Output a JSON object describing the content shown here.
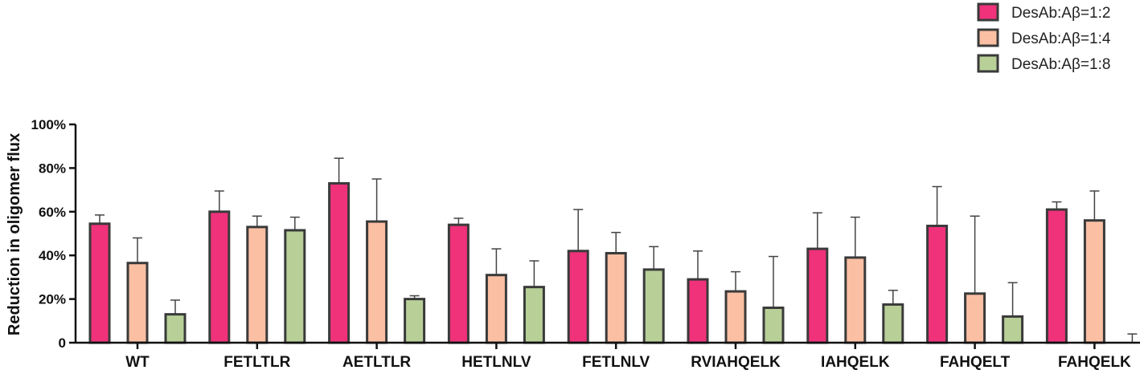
{
  "chart_data": {
    "type": "bar",
    "ylabel": "Reduction in oligomer flux",
    "ylim": [
      0,
      100
    ],
    "yticks": [
      "0",
      "20%",
      "40%",
      "60%",
      "80%",
      "100%"
    ],
    "legend_position": "top-right",
    "categories": [
      "WT",
      "FETLTLR",
      "AETLTLR",
      "HETLNLV",
      "FETLNLV",
      "RVIAHQELK",
      "IAHQELK",
      "FAHQELT",
      "FAHQELK"
    ],
    "series": [
      {
        "name": "DesAb:Aβ=1:2",
        "color": "#f0327a",
        "values": [
          54.5,
          60,
          73,
          54,
          42,
          29,
          43,
          53.5,
          61
        ],
        "errors": [
          4,
          9.5,
          11.5,
          3,
          19,
          13,
          16.5,
          18,
          3.5
        ]
      },
      {
        "name": "DesAb:Aβ=1:4",
        "color": "#fbbfa3",
        "values": [
          36.5,
          53,
          55.5,
          31,
          41,
          23.5,
          39,
          22.5,
          56
        ],
        "errors": [
          11.5,
          5,
          19.5,
          12,
          9.5,
          9,
          18.5,
          35.5,
          13.5
        ]
      },
      {
        "name": "DesAb:Aβ=1:8",
        "color": "#b8d098",
        "values": [
          13,
          51.5,
          20,
          25.5,
          33.5,
          16,
          17.5,
          12,
          0
        ],
        "errors": [
          6.5,
          6,
          1.5,
          12,
          10.5,
          23.5,
          6.5,
          15.5,
          4
        ]
      }
    ]
  }
}
